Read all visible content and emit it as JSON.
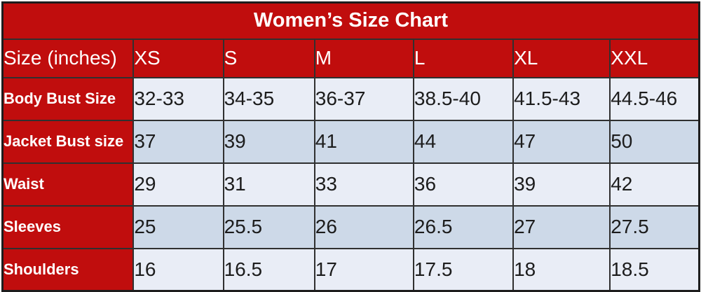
{
  "table": {
    "title": "Women’s Size Chart",
    "header": {
      "label": "Size (inches)",
      "sizes": [
        "XS",
        "S",
        "M",
        "L",
        "XL",
        "XXL"
      ]
    },
    "rows": [
      {
        "label": "Body Bust Size",
        "values": [
          "32-33",
          "34-35",
          "36-37",
          "38.5-40",
          "41.5-43",
          "44.5-46"
        ]
      },
      {
        "label": "Jacket Bust size",
        "values": [
          "37",
          "39",
          "41",
          "44",
          "47",
          "50"
        ]
      },
      {
        "label": "Waist",
        "values": [
          "29",
          "31",
          "33",
          "36",
          "39",
          "42"
        ]
      },
      {
        "label": "Sleeves",
        "values": [
          "25",
          "25.5",
          "26",
          "26.5",
          "27",
          "27.5"
        ]
      },
      {
        "label": "Shoulders",
        "values": [
          "16",
          "16.5",
          "17",
          "17.5",
          "18",
          "18.5"
        ]
      }
    ],
    "colors": {
      "accent_red": "#c00d0d",
      "row_light": "#e9edf6",
      "row_dark": "#cdd9e8",
      "grid_border": "#303030",
      "text_light": "#ffffff",
      "text_dark": "#1c1c1c"
    }
  },
  "chart_data": {
    "type": "table",
    "title": "Women’s Size Chart",
    "columns": [
      "Size (inches)",
      "XS",
      "S",
      "M",
      "L",
      "XL",
      "XXL"
    ],
    "rows": [
      [
        "Body Bust Size",
        "32-33",
        "34-35",
        "36-37",
        "38.5-40",
        "41.5-43",
        "44.5-46"
      ],
      [
        "Jacket Bust size",
        "37",
        "39",
        "41",
        "44",
        "47",
        "50"
      ],
      [
        "Waist",
        "29",
        "31",
        "33",
        "36",
        "39",
        "42"
      ],
      [
        "Sleeves",
        "25",
        "25.5",
        "26",
        "26.5",
        "27",
        "27.5"
      ],
      [
        "Shoulders",
        "16",
        "16.5",
        "17",
        "17.5",
        "18",
        "18.5"
      ]
    ]
  }
}
